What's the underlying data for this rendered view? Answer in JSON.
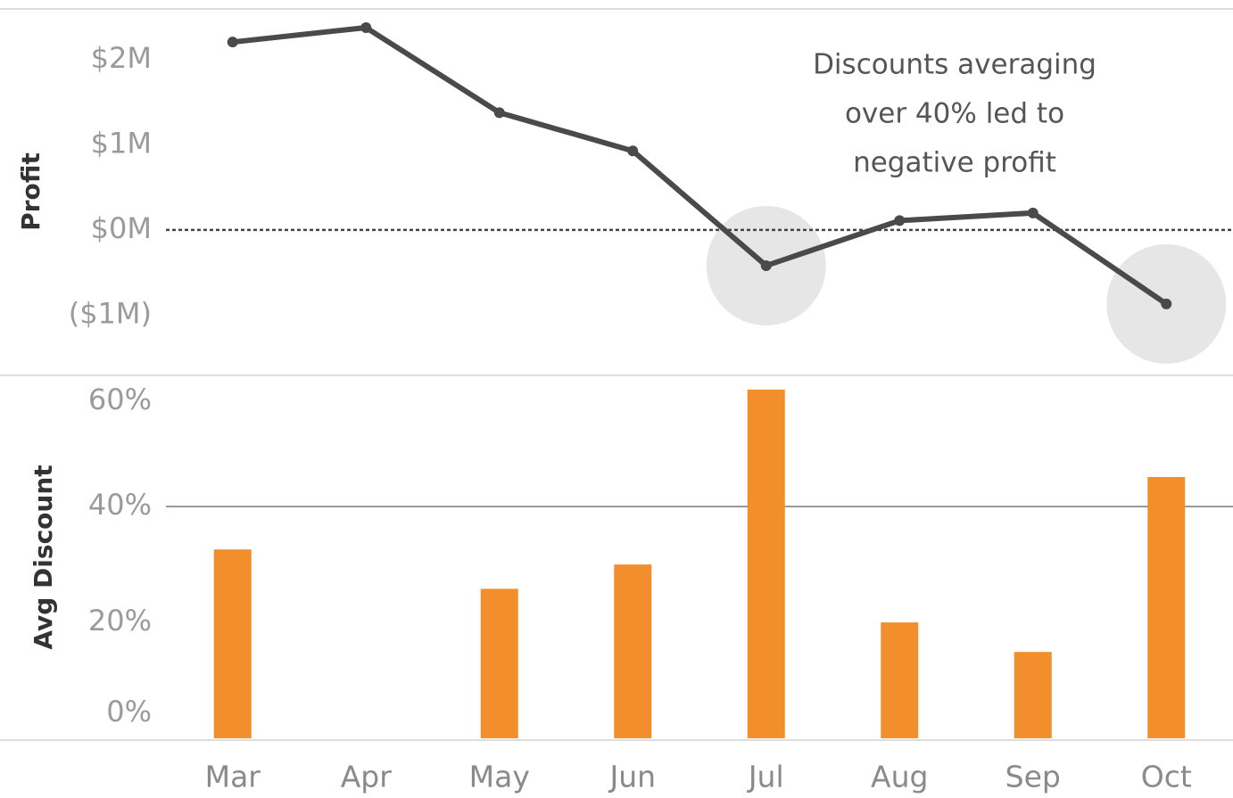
{
  "chart_data": [
    {
      "type": "line",
      "y_label": "Profit",
      "values": [
        2210000,
        2380000,
        1380000,
        930000,
        -420000,
        110000,
        200000,
        -870000
      ],
      "color": "#4a4a4a",
      "ylim": [
        -1700000,
        2600000
      ],
      "yticks": [
        {
          "value": 2000000,
          "label": "$2M"
        },
        {
          "value": 1000000,
          "label": "$1M"
        },
        {
          "value": 0,
          "label": "$0M"
        },
        {
          "value": -1000000,
          "label": "($1M)"
        }
      ],
      "reference_line": 0,
      "reference_style": "dotted",
      "highlight_indices": [
        4,
        7
      ],
      "highlight_color": "#e6e6e6",
      "annotation": [
        "Discounts averaging",
        "over 40% led to",
        "negative profit"
      ]
    },
    {
      "type": "bar",
      "y_label": "Avg Discount",
      "categories": [
        "Mar",
        "Apr",
        "May",
        "Jun",
        "Jul",
        "Aug",
        "Sep",
        "Oct"
      ],
      "values": [
        32.6,
        0,
        25.8,
        30,
        60.2,
        20,
        14.9,
        45.1
      ],
      "color": "#f28e2b",
      "ylim": [
        0,
        62.5
      ],
      "yticks": [
        {
          "value": 60,
          "label": "60%"
        },
        {
          "value": 40,
          "label": "40%"
        },
        {
          "value": 20,
          "label": "20%"
        },
        {
          "value": 0,
          "label": "0%"
        }
      ],
      "reference_line": 40,
      "reference_style": "solid"
    }
  ]
}
